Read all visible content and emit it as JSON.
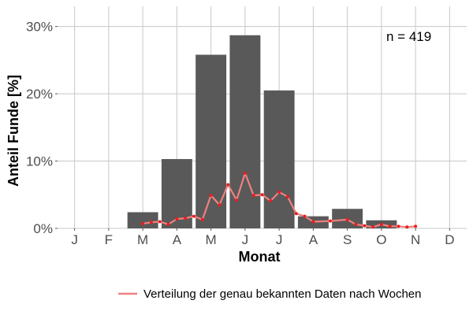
{
  "chart_data": {
    "type": "bar",
    "xlabel": "Monat",
    "ylabel": "Anteil Funde [%]",
    "ylim": [
      0,
      33
    ],
    "yticks": [
      0,
      10,
      20,
      30
    ],
    "ytick_labels": [
      "0%",
      "10%",
      "20%",
      "30%"
    ],
    "categories": [
      "J",
      "F",
      "M",
      "A",
      "M",
      "J",
      "J",
      "A",
      "S",
      "O",
      "N",
      "D"
    ],
    "values": [
      0,
      0,
      2.4,
      10.3,
      25.8,
      28.7,
      20.5,
      1.8,
      2.9,
      1.2,
      0,
      0
    ],
    "bar_color": "#595959",
    "grid": true,
    "annotation": "n = 419",
    "line_series": {
      "name": "Verteilung der genau bekannten Daten nach Wochen",
      "line_color": "#f08080",
      "point_color": "#ee1c1c",
      "x": [
        3.0,
        3.25,
        3.5,
        3.75,
        4.0,
        4.25,
        4.5,
        4.75,
        5.0,
        5.25,
        5.5,
        5.75,
        6.0,
        6.25,
        6.5,
        6.75,
        7.0,
        7.25,
        7.5,
        7.75,
        8.0,
        8.5,
        9.0,
        9.25,
        9.5,
        9.75,
        10.0,
        10.25,
        10.5,
        10.75,
        11.0
      ],
      "y": [
        0.7,
        0.9,
        1.0,
        0.6,
        1.4,
        1.5,
        1.8,
        1.3,
        4.9,
        3.5,
        6.5,
        4.2,
        8.2,
        4.9,
        5.0,
        4.1,
        5.4,
        4.7,
        2.2,
        1.8,
        1.0,
        1.1,
        1.3,
        0.6,
        0.4,
        0.2,
        0.6,
        0.3,
        0.3,
        0.2,
        0.3
      ]
    },
    "legend_position": "bottom"
  }
}
